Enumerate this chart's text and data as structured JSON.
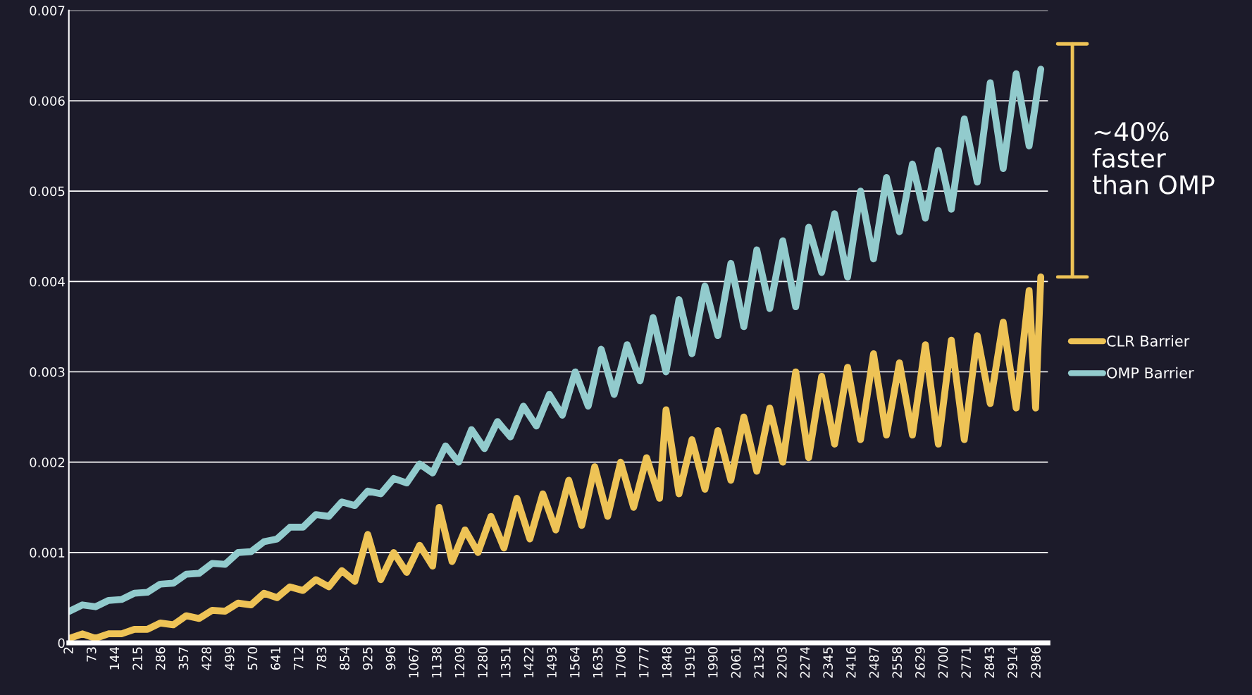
{
  "chart_data": {
    "type": "line",
    "xlim": [
      0,
      3020
    ],
    "ylim": [
      0,
      0.007
    ],
    "xticks": [
      2,
      73,
      144,
      215,
      286,
      357,
      428,
      499,
      570,
      641,
      712,
      783,
      854,
      925,
      996,
      1067,
      1138,
      1209,
      1280,
      1351,
      1422,
      1493,
      1564,
      1635,
      1706,
      1777,
      1848,
      1919,
      1990,
      2061,
      2132,
      2203,
      2274,
      2345,
      2416,
      2487,
      2558,
      2629,
      2700,
      2771,
      2843,
      2914,
      2986
    ],
    "yticks": [
      0,
      0.001,
      0.002,
      0.003,
      0.004,
      0.005,
      0.006,
      0.007
    ],
    "grid": "y",
    "legend": "right",
    "marker": "none",
    "line_style": "solid",
    "annotations": [
      "~40%\nfaster\nthan OMP"
    ],
    "series": [
      {
        "name": "CLR Barrier",
        "color": "#eec356",
        "x": [
          2,
          42,
          82,
          122,
          162,
          202,
          242,
          282,
          322,
          362,
          402,
          442,
          482,
          522,
          562,
          602,
          642,
          682,
          722,
          762,
          802,
          842,
          882,
          922,
          962,
          1002,
          1042,
          1082,
          1122,
          1142,
          1182,
          1222,
          1262,
          1302,
          1342,
          1382,
          1422,
          1462,
          1502,
          1542,
          1582,
          1622,
          1662,
          1702,
          1742,
          1782,
          1822,
          1842,
          1882,
          1922,
          1962,
          2002,
          2042,
          2082,
          2122,
          2162,
          2202,
          2242,
          2282,
          2322,
          2362,
          2402,
          2442,
          2482,
          2522,
          2562,
          2602,
          2642,
          2682,
          2722,
          2762,
          2802,
          2842,
          2882,
          2922,
          2962,
          2982,
          2998
        ],
        "values": [
          5e-05,
          0.0001,
          5e-05,
          0.0001,
          0.0001,
          0.00015,
          0.00015,
          0.00022,
          0.0002,
          0.0003,
          0.00027,
          0.00036,
          0.00035,
          0.00044,
          0.00042,
          0.00055,
          0.0005,
          0.00062,
          0.00058,
          0.0007,
          0.00062,
          0.0008,
          0.00068,
          0.0012,
          0.0007,
          0.001,
          0.00078,
          0.00108,
          0.00085,
          0.0015,
          0.0009,
          0.00125,
          0.001,
          0.0014,
          0.00105,
          0.0016,
          0.00115,
          0.00165,
          0.00125,
          0.0018,
          0.0013,
          0.00195,
          0.0014,
          0.002,
          0.0015,
          0.00205,
          0.0016,
          0.00258,
          0.00165,
          0.00225,
          0.0017,
          0.00235,
          0.0018,
          0.0025,
          0.0019,
          0.0026,
          0.002,
          0.003,
          0.00205,
          0.00295,
          0.0022,
          0.00305,
          0.00225,
          0.0032,
          0.0023,
          0.0031,
          0.0023,
          0.0033,
          0.0022,
          0.00335,
          0.00225,
          0.0034,
          0.00265,
          0.00355,
          0.0026,
          0.0039,
          0.0026,
          0.00405
        ]
      },
      {
        "name": "OMP Barrier",
        "color": "#92cbcd",
        "x": [
          2,
          42,
          82,
          122,
          162,
          202,
          242,
          282,
          322,
          362,
          402,
          442,
          482,
          522,
          562,
          602,
          642,
          682,
          722,
          762,
          802,
          842,
          882,
          922,
          962,
          1002,
          1042,
          1082,
          1122,
          1162,
          1202,
          1242,
          1282,
          1322,
          1362,
          1402,
          1442,
          1482,
          1522,
          1562,
          1602,
          1642,
          1682,
          1722,
          1762,
          1802,
          1842,
          1882,
          1922,
          1962,
          2002,
          2042,
          2082,
          2122,
          2162,
          2202,
          2242,
          2282,
          2322,
          2362,
          2402,
          2442,
          2482,
          2522,
          2562,
          2602,
          2642,
          2682,
          2722,
          2762,
          2802,
          2842,
          2882,
          2922,
          2962,
          2998
        ],
        "values": [
          0.00035,
          0.00042,
          0.0004,
          0.00047,
          0.00048,
          0.00055,
          0.00056,
          0.00065,
          0.00066,
          0.00076,
          0.00077,
          0.00088,
          0.00087,
          0.001,
          0.00101,
          0.00112,
          0.00115,
          0.00128,
          0.00128,
          0.00142,
          0.0014,
          0.00156,
          0.00152,
          0.00168,
          0.00165,
          0.00182,
          0.00177,
          0.00198,
          0.00188,
          0.00218,
          0.002,
          0.00236,
          0.00215,
          0.00245,
          0.00228,
          0.00262,
          0.0024,
          0.00275,
          0.00252,
          0.003,
          0.00262,
          0.00325,
          0.00275,
          0.0033,
          0.0029,
          0.0036,
          0.003,
          0.0038,
          0.0032,
          0.00395,
          0.0034,
          0.0042,
          0.0035,
          0.00435,
          0.0037,
          0.00445,
          0.00372,
          0.0046,
          0.0041,
          0.00475,
          0.00405,
          0.005,
          0.00425,
          0.00515,
          0.00455,
          0.0053,
          0.0047,
          0.00545,
          0.0048,
          0.0058,
          0.0051,
          0.0062,
          0.00525,
          0.0063,
          0.0055,
          0.00635
        ]
      }
    ]
  }
}
